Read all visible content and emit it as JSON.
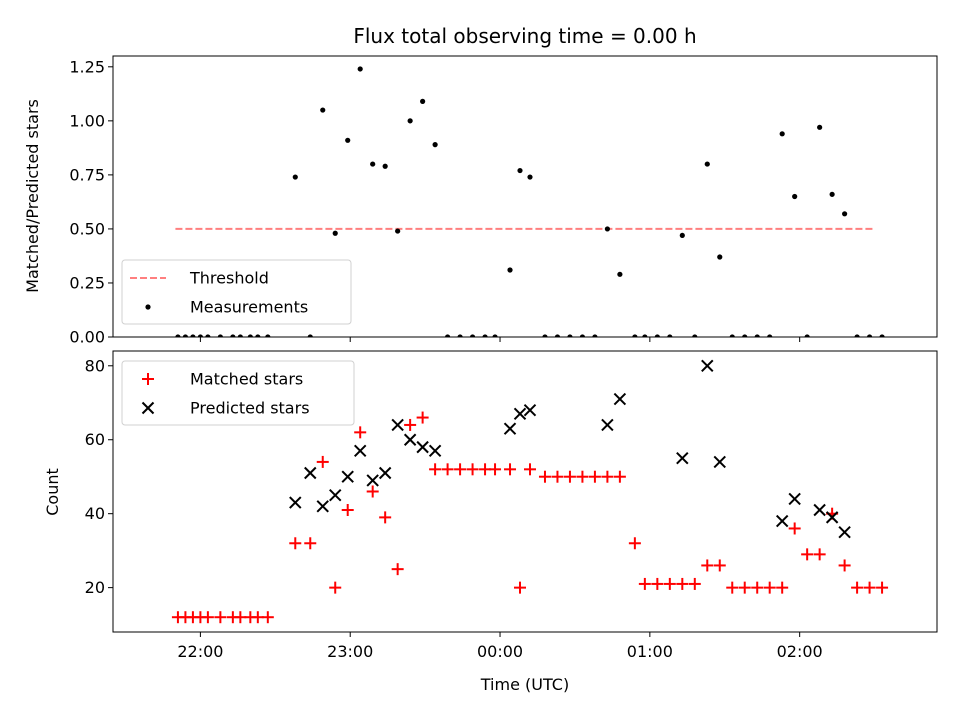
{
  "chart_data": [
    {
      "panel": "top",
      "type": "scatter",
      "title": "Flux total observing time = 0.00 h",
      "xlabel": "",
      "ylabel": "Matched/Predicted stars",
      "xlim": [
        "21:25",
        "02:55"
      ],
      "ylim": [
        0,
        1.3
      ],
      "yticks": [
        0.0,
        0.25,
        0.5,
        0.75,
        1.0,
        1.25
      ],
      "ytick_labels": [
        "0.00",
        "0.25",
        "0.50",
        "0.75",
        "1.00",
        "1.25"
      ],
      "xticks": [
        "22:00",
        "23:00",
        "00:00",
        "01:00",
        "02:00"
      ],
      "legend_position": "lower-left",
      "grid": false,
      "series": [
        {
          "name": "Threshold",
          "kind": "line",
          "style": "dashed",
          "color": "#ff7f7f",
          "x": [
            "21:50",
            "02:30"
          ],
          "y": [
            0.5,
            0.5
          ]
        },
        {
          "name": "Measurements",
          "kind": "scatter",
          "marker": "dot",
          "color": "#000000",
          "x": [
            "21:51",
            "21:54",
            "21:57",
            "22:00",
            "22:03",
            "22:08",
            "22:13",
            "22:16",
            "22:20",
            "22:23",
            "22:27",
            "22:38",
            "22:44",
            "22:49",
            "22:54",
            "22:59",
            "23:04",
            "23:09",
            "23:14",
            "23:19",
            "23:24",
            "23:29",
            "23:34",
            "23:39",
            "23:44",
            "23:49",
            "23:54",
            "23:58",
            "24:04",
            "24:08",
            "24:12",
            "24:18",
            "24:23",
            "24:28",
            "24:33",
            "24:38",
            "24:43",
            "24:48",
            "24:54",
            "24:58",
            "25:03",
            "25:08",
            "25:13",
            "25:18",
            "25:23",
            "25:28",
            "25:33",
            "25:38",
            "25:43",
            "25:48",
            "25:53",
            "25:58",
            "26:03",
            "26:08",
            "26:13",
            "26:18",
            "26:23",
            "26:28",
            "26:33"
          ],
          "y": [
            0,
            0,
            0,
            0,
            0,
            0,
            0,
            0,
            0,
            0,
            0,
            0.74,
            0,
            1.05,
            0.48,
            0.91,
            1.24,
            0.8,
            0.79,
            0.49,
            1.0,
            1.09,
            0.89,
            0,
            0,
            0,
            0,
            0,
            0.31,
            0.77,
            0.74,
            0,
            0,
            0,
            0,
            0,
            0.5,
            0.29,
            0,
            0,
            0,
            0,
            0.47,
            0,
            0.8,
            0.37,
            0,
            0,
            0,
            0,
            0.94,
            0.65,
            0,
            0.97,
            0.66,
            0.57,
            0,
            0,
            0
          ]
        }
      ]
    },
    {
      "panel": "bottom",
      "type": "scatter",
      "title": "",
      "xlabel": "Time (UTC)",
      "ylabel": "Count",
      "xlim": [
        "21:25",
        "02:55"
      ],
      "ylim": [
        8,
        84
      ],
      "yticks": [
        20,
        40,
        60,
        80
      ],
      "ytick_labels": [
        "20",
        "40",
        "60",
        "80"
      ],
      "xticks": [
        "22:00",
        "23:00",
        "00:00",
        "01:00",
        "02:00"
      ],
      "legend_position": "upper-left",
      "grid": false,
      "series": [
        {
          "name": "Matched stars",
          "kind": "scatter",
          "marker": "plus",
          "color": "#ff0000",
          "x": [
            "21:51",
            "21:54",
            "21:57",
            "22:00",
            "22:03",
            "22:08",
            "22:13",
            "22:16",
            "22:20",
            "22:23",
            "22:27",
            "22:38",
            "22:44",
            "22:49",
            "22:54",
            "22:59",
            "23:04",
            "23:09",
            "23:14",
            "23:19",
            "23:24",
            "23:29",
            "23:34",
            "23:39",
            "23:44",
            "23:49",
            "23:54",
            "23:58",
            "24:04",
            "24:08",
            "24:12",
            "24:18",
            "24:23",
            "24:28",
            "24:33",
            "24:38",
            "24:43",
            "24:48",
            "24:54",
            "24:58",
            "25:03",
            "25:08",
            "25:13",
            "25:18",
            "25:23",
            "25:28",
            "25:33",
            "25:38",
            "25:43",
            "25:48",
            "25:53",
            "25:58",
            "26:03",
            "26:08",
            "26:13",
            "26:18",
            "26:23",
            "26:28",
            "26:33"
          ],
          "y": [
            12,
            12,
            12,
            12,
            12,
            12,
            12,
            12,
            12,
            12,
            12,
            32,
            32,
            54,
            20,
            41,
            62,
            46,
            39,
            25,
            64,
            66,
            52,
            52,
            52,
            52,
            52,
            52,
            52,
            20,
            52,
            50,
            50,
            50,
            50,
            50,
            50,
            50,
            32,
            21,
            21,
            21,
            21,
            21,
            26,
            26,
            20,
            20,
            20,
            20,
            20,
            36,
            29,
            29,
            40,
            26,
            20,
            20,
            20
          ]
        },
        {
          "name": "Predicted stars",
          "kind": "scatter",
          "marker": "x",
          "color": "#000000",
          "x": [
            "22:38",
            "22:44",
            "22:49",
            "22:54",
            "22:59",
            "23:04",
            "23:09",
            "23:14",
            "23:19",
            "23:24",
            "23:29",
            "23:34",
            "24:04",
            "24:08",
            "24:12",
            "24:43",
            "24:48",
            "25:13",
            "25:23",
            "25:28",
            "25:53",
            "25:58",
            "26:08",
            "26:13",
            "26:18"
          ],
          "y": [
            43,
            51,
            42,
            45,
            50,
            57,
            49,
            51,
            64,
            60,
            58,
            57,
            63,
            67,
            68,
            64,
            71,
            55,
            80,
            54,
            38,
            44,
            41,
            39,
            35
          ]
        }
      ]
    }
  ]
}
